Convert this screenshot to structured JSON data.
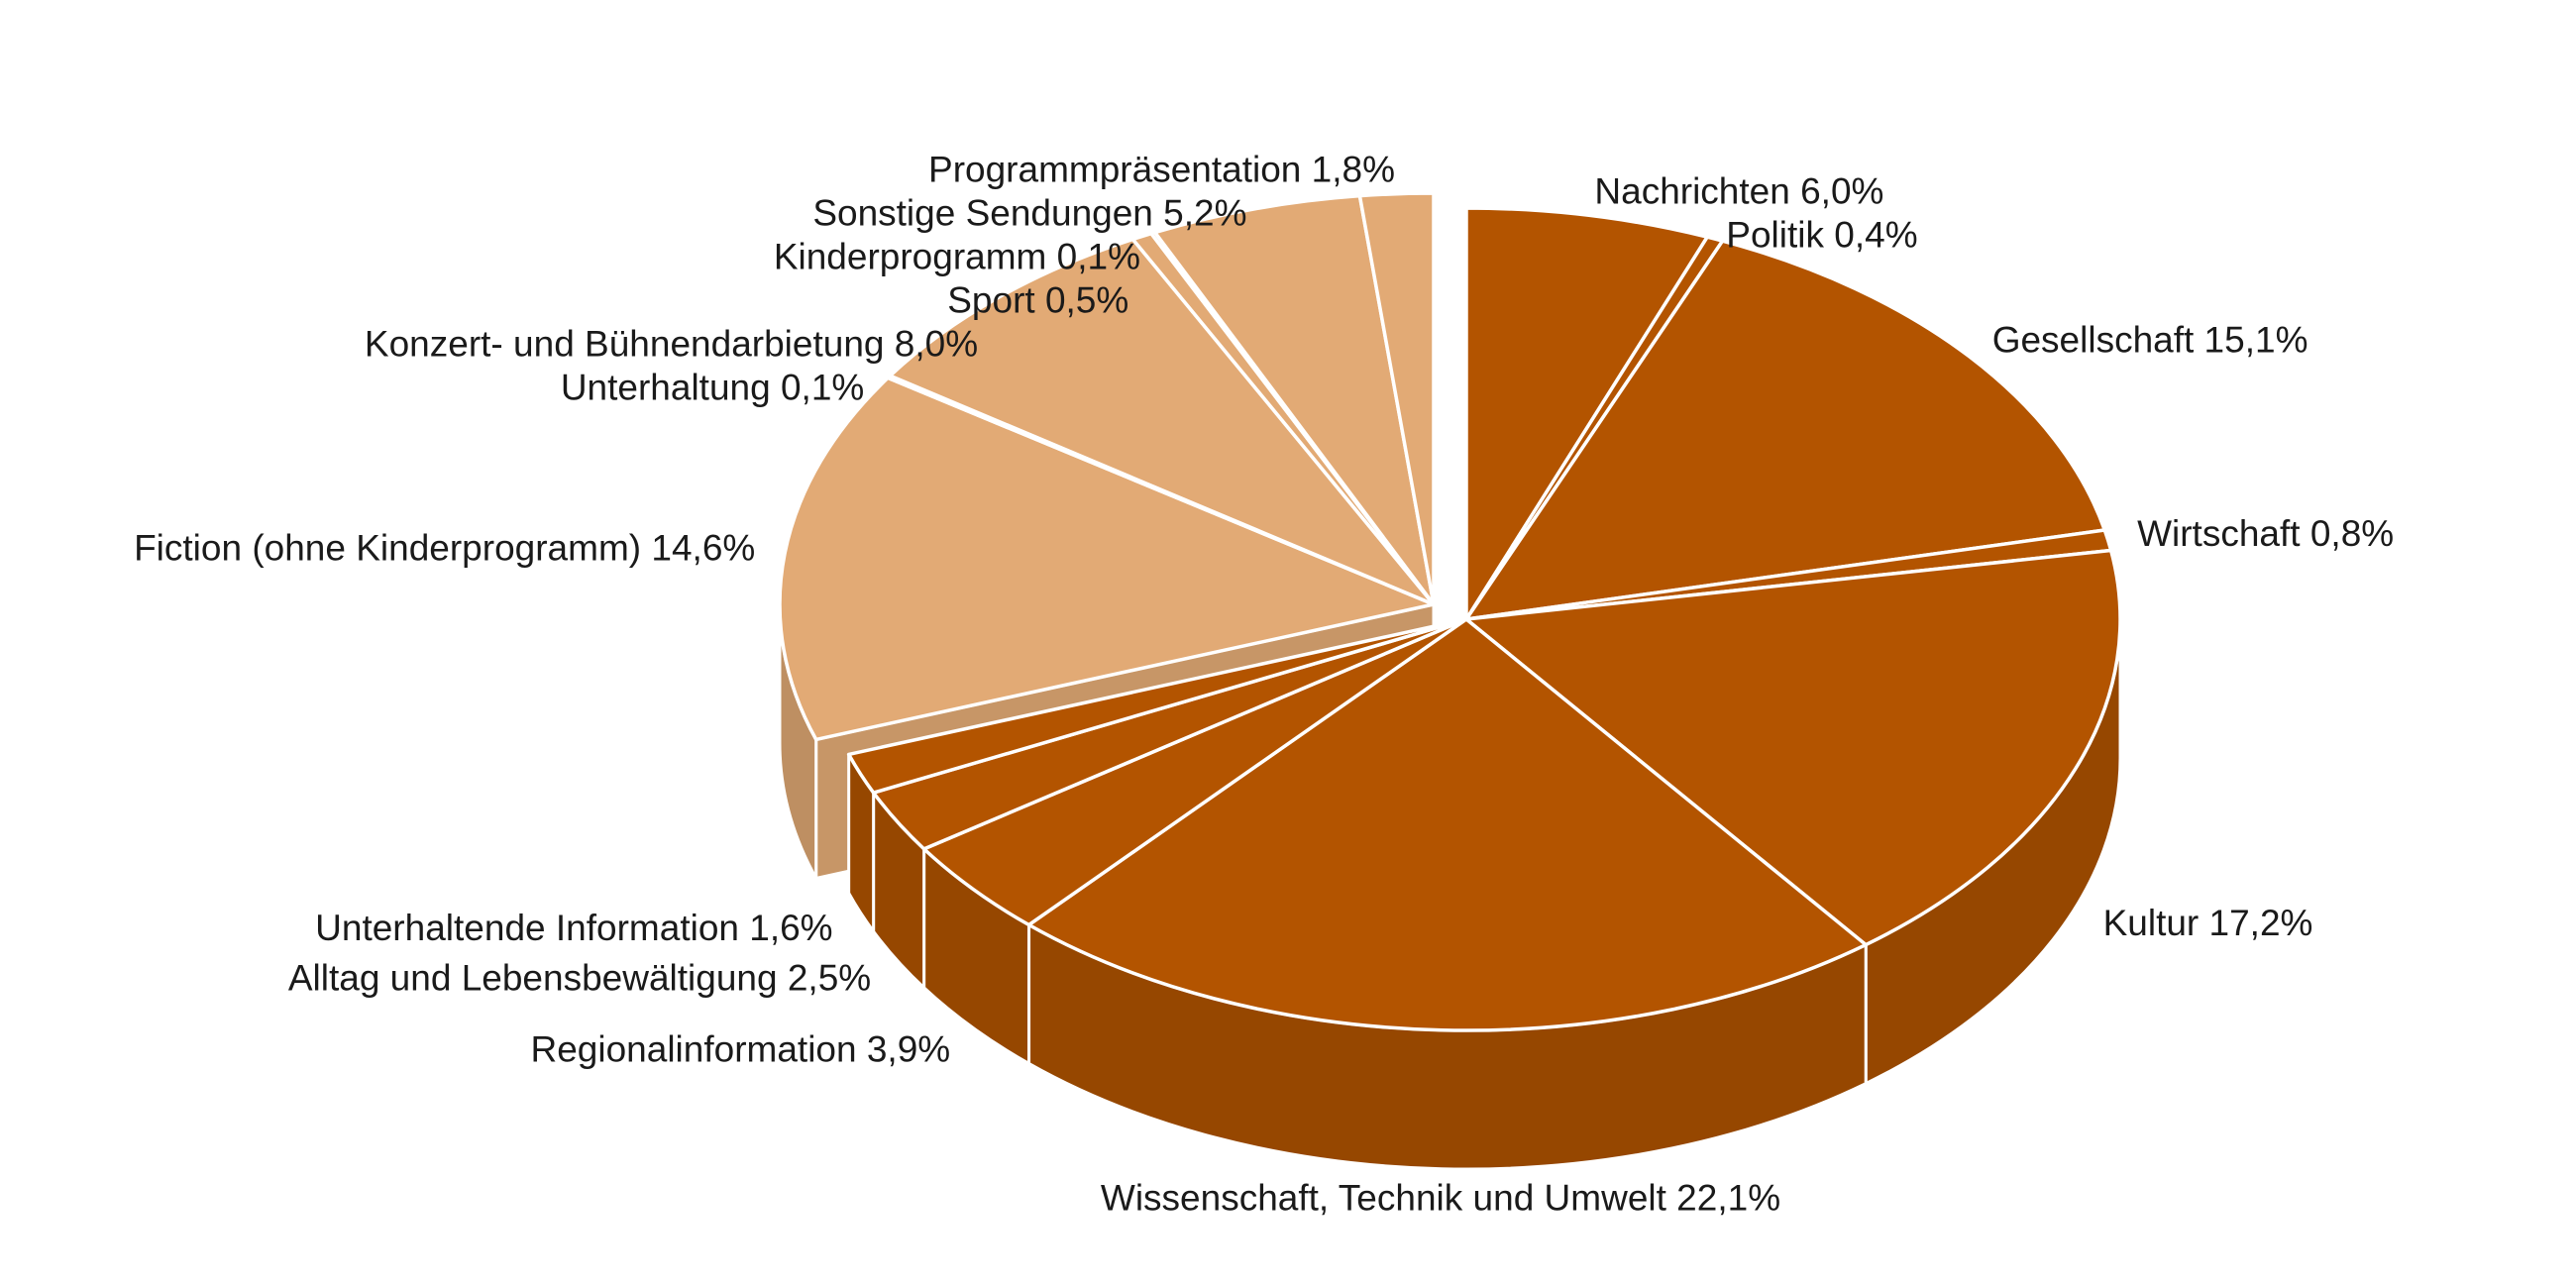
{
  "chart_data": {
    "type": "pie",
    "title": "",
    "groups": [
      {
        "name": "",
        "color": "#b35400"
      },
      {
        "name": "",
        "color": "#e2aa75"
      }
    ],
    "slices": [
      {
        "label": "Nachrichten 6,0%",
        "value": 6.0,
        "group": 0
      },
      {
        "label": "Politik 0,4%",
        "value": 0.4,
        "group": 0
      },
      {
        "label": "Gesellschaft 15,1%",
        "value": 15.1,
        "group": 0
      },
      {
        "label": "Wirtschaft 0,8%",
        "value": 0.8,
        "group": 0
      },
      {
        "label": "Kultur 17,2%",
        "value": 17.2,
        "group": 0
      },
      {
        "label": "Wissenschaft, Technik und Umwelt 22,1%",
        "value": 22.1,
        "group": 0
      },
      {
        "label": "Regionalinformation 3,9%",
        "value": 3.9,
        "group": 0
      },
      {
        "label": "Alltag und Lebensbewältigung 2,5%",
        "value": 2.5,
        "group": 0
      },
      {
        "label": "Unterhaltende Information 1,6%",
        "value": 1.6,
        "group": 0
      },
      {
        "label": "Fiction (ohne Kinderprogramm) 14,6%",
        "value": 14.6,
        "group": 1
      },
      {
        "label": "Unterhaltung 0,1%",
        "value": 0.1,
        "group": 1
      },
      {
        "label": "Konzert- und Bühnendarbietung 8,0%",
        "value": 8.0,
        "group": 1
      },
      {
        "label": "Sport 0,5%",
        "value": 0.5,
        "group": 1
      },
      {
        "label": "Kinderprogramm 0,1%",
        "value": 0.1,
        "group": 1
      },
      {
        "label": "Sonstige Sendungen 5,2%",
        "value": 5.2,
        "group": 1
      },
      {
        "label": "Programmpräsentation 1,8%",
        "value": 1.8,
        "group": 1
      }
    ],
    "style": "3d-exploded"
  }
}
